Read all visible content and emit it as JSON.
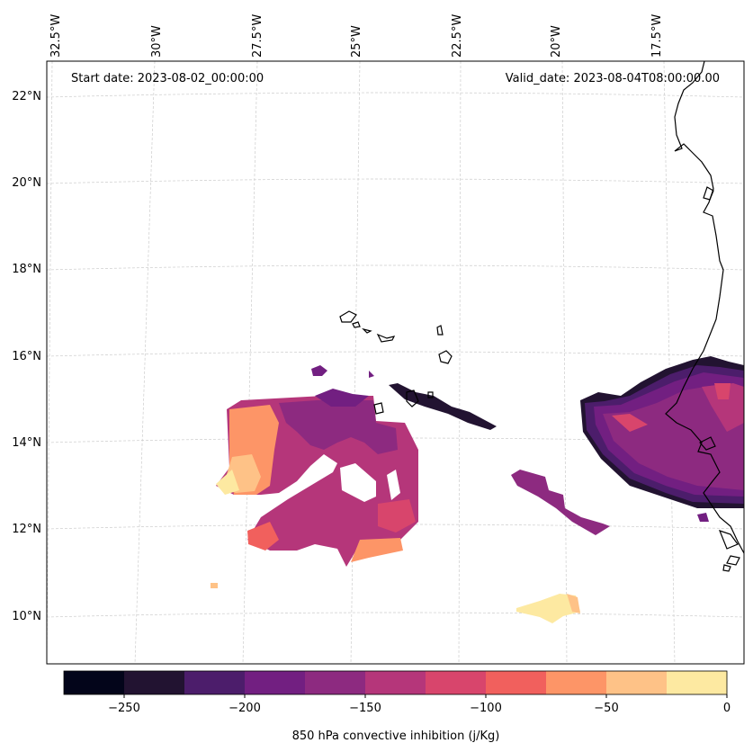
{
  "header": {
    "start_date": "Start date: 2023-08-02_00:00:00",
    "valid_date": "Valid_date: 2023-08-04T08:00:00.00"
  },
  "axes": {
    "lon_labels": [
      "32.5°W",
      "30°W",
      "27.5°W",
      "25°W",
      "22.5°W",
      "20°W",
      "17.5°W"
    ],
    "lat_labels": [
      "22°N",
      "20°N",
      "18°N",
      "16°N",
      "14°N",
      "12°N",
      "10°N"
    ]
  },
  "colorbar": {
    "label": "850 hPa convective inhibition (j/Kg)",
    "ticks": [
      "−250",
      "−200",
      "−150",
      "−100",
      "−50",
      "0"
    ],
    "range": [
      -275,
      0
    ],
    "step": 25,
    "colors": [
      "#03051a",
      "#221331",
      "#4c1d6b",
      "#721f81",
      "#8d2a80",
      "#b5367a",
      "#d8456c",
      "#f1605d",
      "#fd9567",
      "#fec287",
      "#fde9a1"
    ]
  }
}
